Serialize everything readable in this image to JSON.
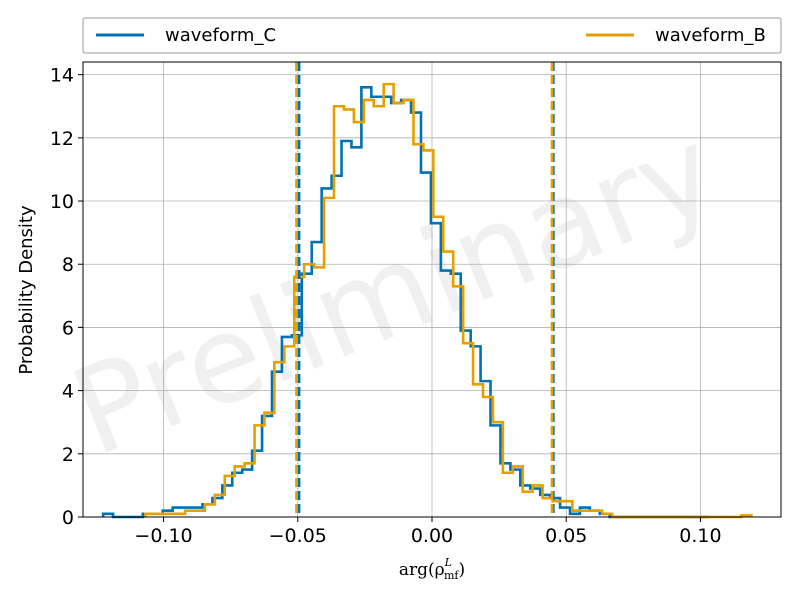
{
  "chart_data": {
    "type": "histogram",
    "watermark": "Preliminary",
    "xlabel": "arg(ρ",
    "xlabel_sup": "L",
    "xlabel_sub": "mf",
    "xlabel_close": ")",
    "ylabel": "Probability Density",
    "xlim": [
      -0.13,
      0.13
    ],
    "ylim": [
      0,
      14.4
    ],
    "xticks": [
      -0.1,
      -0.05,
      0.0,
      0.05,
      0.1
    ],
    "xtick_labels": [
      "−0.10",
      "−0.05",
      "0.00",
      "0.05",
      "0.10"
    ],
    "yticks": [
      0,
      2,
      4,
      6,
      8,
      10,
      12,
      14
    ],
    "ytick_labels": [
      "0",
      "2",
      "4",
      "6",
      "8",
      "10",
      "12",
      "14"
    ],
    "grid": true,
    "legend_position": "top, above plot",
    "series": [
      {
        "name": "waveform_C",
        "color": "#0072b2",
        "edges": [
          -0.1225,
          -0.1188,
          -0.1151,
          -0.1114,
          -0.1077,
          -0.104,
          -0.1003,
          -0.0966,
          -0.0929,
          -0.0892,
          -0.0855,
          -0.0818,
          -0.0781,
          -0.0744,
          -0.0707,
          -0.067,
          -0.0633,
          -0.0596,
          -0.0559,
          -0.0522,
          -0.0485,
          -0.0448,
          -0.0411,
          -0.0374,
          -0.0337,
          -0.03,
          -0.0263,
          -0.0226,
          -0.0189,
          -0.0152,
          -0.0115,
          -0.0078,
          -0.0041,
          -0.0004,
          0.0033,
          0.007,
          0.0107,
          0.0144,
          0.0181,
          0.0218,
          0.0255,
          0.0292,
          0.0329,
          0.0366,
          0.0403,
          0.044,
          0.0477,
          0.0514,
          0.0551,
          0.0588,
          0.0625,
          0.0662,
          0.0699,
          0.0736,
          0.0773,
          0.081,
          0.0847,
          0.0884,
          0.0921,
          0.0958,
          0.0995,
          0.1032
        ],
        "density": [
          0.1,
          0.0,
          0.0,
          0.0,
          0.1,
          0.1,
          0.2,
          0.3,
          0.3,
          0.3,
          0.4,
          0.6,
          1.0,
          1.4,
          1.5,
          2.1,
          3.2,
          4.6,
          5.7,
          5.75,
          7.7,
          8.7,
          10.4,
          10.8,
          11.9,
          11.7,
          13.6,
          13.3,
          13.3,
          13.1,
          13.2,
          12.8,
          10.9,
          9.3,
          7.8,
          7.7,
          5.9,
          5.4,
          4.3,
          2.9,
          1.7,
          1.5,
          1.0,
          0.9,
          0.7,
          0.6,
          0.3,
          0.1,
          0.3,
          0.2,
          0.1,
          0.0,
          0.0,
          0.0,
          0.0,
          0.0,
          0.0,
          0.0,
          0.0,
          0.0,
          0.0
        ],
        "vlines": [
          -0.0495,
          0.0452
        ]
      },
      {
        "name": "waveform_B",
        "color": "#e69f00",
        "edges": [
          -0.1068,
          -0.1031,
          -0.0994,
          -0.0957,
          -0.092,
          -0.0883,
          -0.0846,
          -0.0809,
          -0.0772,
          -0.0735,
          -0.0698,
          -0.0661,
          -0.0624,
          -0.0587,
          -0.055,
          -0.0513,
          -0.0476,
          -0.0439,
          -0.0402,
          -0.0365,
          -0.0328,
          -0.0291,
          -0.0254,
          -0.0217,
          -0.018,
          -0.0143,
          -0.0106,
          -0.0069,
          -0.0032,
          0.0005,
          0.0042,
          0.0079,
          0.0116,
          0.0153,
          0.019,
          0.0227,
          0.0264,
          0.0301,
          0.0338,
          0.0375,
          0.0412,
          0.0449,
          0.0486,
          0.0523,
          0.056,
          0.0597,
          0.0634,
          0.0671,
          0.0708,
          0.0745,
          0.0782,
          0.0819,
          0.0856,
          0.0893,
          0.093,
          0.0967,
          0.1004,
          0.1041,
          0.1078,
          0.1115,
          0.1152,
          0.119
        ],
        "density": [
          0.1,
          0.1,
          0.1,
          0.1,
          0.2,
          0.2,
          0.4,
          0.7,
          1.3,
          1.6,
          1.7,
          2.9,
          3.3,
          4.9,
          5.4,
          7.6,
          8.0,
          7.9,
          10.1,
          13.0,
          12.9,
          12.5,
          13.2,
          13.0,
          13.7,
          13.1,
          13.2,
          11.8,
          11.6,
          9.5,
          8.4,
          7.3,
          5.5,
          4.2,
          3.8,
          3.0,
          1.4,
          1.6,
          0.8,
          1.0,
          0.6,
          0.5,
          0.5,
          0.2,
          0.2,
          0.2,
          0.1,
          0.0,
          0.0,
          0.0,
          0.0,
          0.0,
          0.0,
          0.0,
          0.0,
          0.0,
          0.0,
          0.0,
          0.0,
          0.0,
          0.05
        ],
        "vlines": [
          -0.0505,
          0.0447
        ]
      }
    ]
  }
}
